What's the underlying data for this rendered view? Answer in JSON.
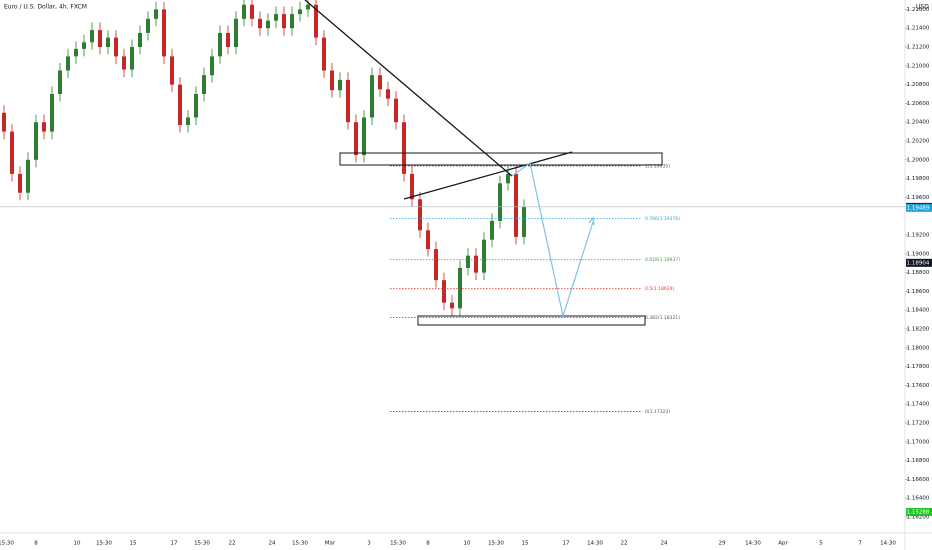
{
  "chart_data": {
    "type": "candlestick",
    "title": "Euro / U.S. Dollar, 4h, FXCM",
    "currency": "USD",
    "up_color": "#2e7d32",
    "down_color": "#c62828",
    "grid": false,
    "ylim": [
      1.1603,
      1.217
    ],
    "yticks": [
      {
        "value": 1.216,
        "label": "1.21600"
      },
      {
        "value": 1.214,
        "label": "1.21400"
      },
      {
        "value": 1.212,
        "label": "1.21200"
      },
      {
        "value": 1.21,
        "label": "1.21000"
      },
      {
        "value": 1.208,
        "label": "1.20800"
      },
      {
        "value": 1.206,
        "label": "1.20600"
      },
      {
        "value": 1.204,
        "label": "1.20400"
      },
      {
        "value": 1.202,
        "label": "1.20200"
      },
      {
        "value": 1.2,
        "label": "1.20000"
      },
      {
        "value": 1.198,
        "label": "1.19800"
      },
      {
        "value": 1.196,
        "label": "1.19600"
      },
      {
        "value": 1.192,
        "label": "1.19200"
      },
      {
        "value": 1.19,
        "label": "1.19000"
      },
      {
        "value": 1.188,
        "label": "1.18800"
      },
      {
        "value": 1.186,
        "label": "1.18600"
      },
      {
        "value": 1.184,
        "label": "1.18400"
      },
      {
        "value": 1.182,
        "label": "1.18200"
      },
      {
        "value": 1.18,
        "label": "1.18000"
      },
      {
        "value": 1.178,
        "label": "1.17800"
      },
      {
        "value": 1.176,
        "label": "1.17600"
      },
      {
        "value": 1.174,
        "label": "1.17400"
      },
      {
        "value": 1.172,
        "label": "1.17200"
      },
      {
        "value": 1.17,
        "label": "1.17000"
      },
      {
        "value": 1.168,
        "label": "1.16800"
      },
      {
        "value": 1.166,
        "label": "1.16600"
      },
      {
        "value": 1.164,
        "label": "1.16400"
      },
      {
        "value": 1.162,
        "label": "1.16200"
      }
    ],
    "x_labels": [
      "15:30",
      "8",
      "10",
      "15:30",
      "15",
      "17",
      "15:30",
      "22",
      "24",
      "15:30",
      "Mar",
      "3",
      "15:30",
      "8",
      "10",
      "15:30",
      "15",
      "17",
      "14:30",
      "22",
      "24",
      "29",
      "14:30",
      "Apr",
      "5",
      "7",
      "14:30"
    ],
    "open": [
      1.205,
      1.203,
      1.1985,
      1.1965,
      1.2,
      1.204,
      1.203,
      1.207,
      1.2095,
      1.211,
      1.2118,
      1.2125,
      1.2138,
      1.212,
      1.213,
      1.211,
      1.2096,
      1.212,
      1.2135,
      1.215,
      1.216,
      1.211,
      1.208,
      1.2037,
      1.2045,
      1.207,
      1.209,
      1.211,
      1.2135,
      1.212,
      1.215,
      1.2165,
      1.215,
      1.214,
      1.2148,
      1.2155,
      1.214,
      1.2155,
      1.216,
      1.2165,
      1.213,
      1.2095,
      1.2074,
      1.2085,
      1.204,
      1.2005,
      1.2045,
      1.209,
      1.2075,
      1.2065,
      1.204,
      1.1985,
      1.1958,
      1.1925,
      1.1905,
      1.1872,
      1.1848,
      1.1842,
      1.1885,
      1.1898,
      1.188,
      1.1915,
      1.1935,
      1.1975,
      1.1985,
      1.1918
    ],
    "high": [
      1.2058,
      1.2038,
      1.1993,
      1.2008,
      1.2048,
      1.2048,
      1.2078,
      1.2103,
      1.2118,
      1.2126,
      1.2133,
      1.2146,
      1.2146,
      1.2138,
      1.2138,
      1.2118,
      1.2128,
      1.2143,
      1.2158,
      1.2168,
      1.2168,
      1.2118,
      1.2088,
      1.2053,
      1.2078,
      1.2098,
      1.2118,
      1.2143,
      1.2143,
      1.2158,
      1.2173,
      1.2173,
      1.2158,
      1.2156,
      1.2163,
      1.2163,
      1.2163,
      1.2168,
      1.2173,
      1.2173,
      1.2138,
      1.2103,
      1.2093,
      1.2093,
      1.2048,
      1.2053,
      1.2098,
      1.2098,
      1.2083,
      1.2073,
      1.2048,
      1.1993,
      1.1966,
      1.1933,
      1.1913,
      1.188,
      1.1856,
      1.1893,
      1.1906,
      1.1906,
      1.1923,
      1.1943,
      1.1983,
      1.1993,
      1.1993,
      1.1958
    ],
    "low": [
      1.2022,
      1.1977,
      1.1957,
      1.1957,
      1.1992,
      1.2022,
      1.2022,
      1.2062,
      1.2087,
      1.2102,
      1.211,
      1.2117,
      1.2112,
      1.2112,
      1.2102,
      1.2088,
      1.2088,
      1.2112,
      1.2127,
      1.2142,
      1.2102,
      1.2072,
      1.2029,
      1.2029,
      1.2037,
      1.2062,
      1.2082,
      1.2102,
      1.2112,
      1.2112,
      1.2142,
      1.2142,
      1.2132,
      1.2132,
      1.214,
      1.2132,
      1.2132,
      1.2147,
      1.2152,
      1.2122,
      1.2087,
      1.2066,
      1.2066,
      1.2032,
      1.1997,
      1.1997,
      1.2037,
      1.2067,
      1.2057,
      1.2032,
      1.1977,
      1.195,
      1.1917,
      1.1897,
      1.1864,
      1.184,
      1.1834,
      1.1834,
      1.1877,
      1.1872,
      1.1872,
      1.1907,
      1.1927,
      1.1967,
      1.191,
      1.191
    ],
    "close": [
      1.203,
      1.1985,
      1.1965,
      1.2,
      1.204,
      1.203,
      1.207,
      1.2095,
      1.211,
      1.2118,
      1.2125,
      1.2138,
      1.212,
      1.213,
      1.211,
      1.2096,
      1.212,
      1.2135,
      1.215,
      1.216,
      1.211,
      1.208,
      1.2037,
      1.2045,
      1.207,
      1.209,
      1.211,
      1.2135,
      1.212,
      1.215,
      1.2165,
      1.215,
      1.214,
      1.2148,
      1.2155,
      1.214,
      1.2155,
      1.216,
      1.2165,
      1.213,
      1.2095,
      1.2074,
      1.2085,
      1.204,
      1.2005,
      1.2045,
      1.209,
      1.2075,
      1.2065,
      1.204,
      1.1985,
      1.1958,
      1.1925,
      1.1905,
      1.1872,
      1.1848,
      1.1842,
      1.1885,
      1.1898,
      1.188,
      1.1915,
      1.1935,
      1.1975,
      1.1985,
      1.1918,
      1.195
    ],
    "fib_levels": [
      {
        "label": "1(1.19935)",
        "price": 1.19935,
        "color": "#555555"
      },
      {
        "label": "0.786(1.19376)",
        "price": 1.19376,
        "color": "#29a3d6"
      },
      {
        "label": "0.618(1.18937)",
        "price": 1.18937,
        "color": "#43a047"
      },
      {
        "label": "0.5(1.18629)",
        "price": 1.18629,
        "color": "#e53935"
      },
      {
        "label": "0.382(1.18321)",
        "price": 1.18321,
        "color": "#555555"
      },
      {
        "label": "0(1.17323)",
        "price": 1.17323,
        "color": "#555555"
      }
    ],
    "price_tags": [
      {
        "value": 1.19499,
        "color": "#131722"
      },
      {
        "value": 1.19489,
        "color": "#29a3d6"
      },
      {
        "value": 1.18904,
        "color": "#131722"
      },
      {
        "value": 1.15288,
        "color": "#22c322",
        "pinned": "bottom"
      }
    ]
  }
}
